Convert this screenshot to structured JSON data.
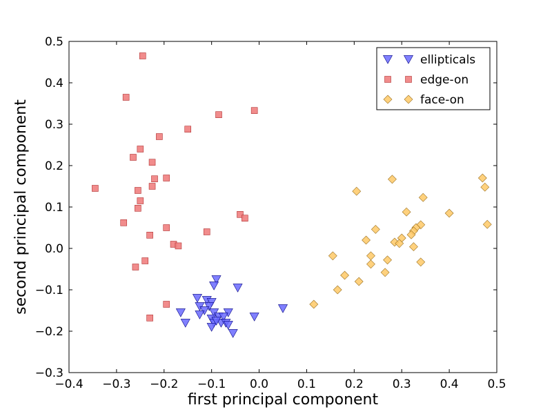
{
  "chart_data": {
    "type": "scatter",
    "title": "",
    "xlabel": "first principal component",
    "ylabel": "second principal component",
    "xlim": [
      -0.4,
      0.5
    ],
    "ylim": [
      -0.3,
      0.5
    ],
    "xticks": [
      -0.4,
      -0.3,
      -0.2,
      -0.1,
      0.0,
      0.1,
      0.2,
      0.3,
      0.4,
      0.5
    ],
    "yticks": [
      -0.3,
      -0.2,
      -0.1,
      0.0,
      0.1,
      0.2,
      0.3,
      0.4,
      0.5
    ],
    "xtick_labels": [
      "−0.4",
      "−0.3",
      "−0.2",
      "−0.1",
      "0.0",
      "0.1",
      "0.2",
      "0.3",
      "0.4",
      "0.5"
    ],
    "ytick_labels": [
      "−0.3",
      "−0.2",
      "−0.1",
      "0.0",
      "0.1",
      "0.2",
      "0.3",
      "0.4",
      "0.5"
    ],
    "grid": false,
    "legend_position": "top-right",
    "series": [
      {
        "name": "ellipticals",
        "marker": "triangle-down",
        "color": "#6a6aff",
        "edge": "#000080",
        "points": [
          [
            -0.09,
            -0.075
          ],
          [
            -0.095,
            -0.09
          ],
          [
            -0.045,
            -0.095
          ],
          [
            -0.13,
            -0.12
          ],
          [
            -0.11,
            -0.125
          ],
          [
            -0.1,
            -0.13
          ],
          [
            -0.125,
            -0.14
          ],
          [
            -0.105,
            -0.14
          ],
          [
            -0.115,
            -0.15
          ],
          [
            -0.165,
            -0.155
          ],
          [
            -0.095,
            -0.155
          ],
          [
            -0.125,
            -0.16
          ],
          [
            -0.065,
            -0.155
          ],
          [
            -0.085,
            -0.165
          ],
          [
            -0.075,
            -0.165
          ],
          [
            -0.1,
            -0.17
          ],
          [
            -0.155,
            -0.18
          ],
          [
            -0.095,
            -0.18
          ],
          [
            -0.08,
            -0.18
          ],
          [
            -0.07,
            -0.18
          ],
          [
            -0.065,
            -0.185
          ],
          [
            -0.1,
            -0.19
          ],
          [
            -0.055,
            -0.205
          ],
          [
            -0.01,
            -0.165
          ],
          [
            0.05,
            -0.145
          ],
          [
            -0.09,
            -0.175
          ]
        ]
      },
      {
        "name": "edge-on",
        "marker": "square",
        "color": "#f08080",
        "edge": "#b03030",
        "points": [
          [
            -0.245,
            0.465
          ],
          [
            -0.28,
            0.365
          ],
          [
            -0.085,
            0.323
          ],
          [
            -0.01,
            0.333
          ],
          [
            -0.15,
            0.288
          ],
          [
            -0.21,
            0.27
          ],
          [
            -0.25,
            0.24
          ],
          [
            -0.265,
            0.22
          ],
          [
            -0.225,
            0.208
          ],
          [
            -0.195,
            0.17
          ],
          [
            -0.22,
            0.168
          ],
          [
            -0.225,
            0.15
          ],
          [
            -0.345,
            0.145
          ],
          [
            -0.255,
            0.14
          ],
          [
            -0.25,
            0.115
          ],
          [
            -0.255,
            0.097
          ],
          [
            -0.04,
            0.082
          ],
          [
            -0.03,
            0.073
          ],
          [
            -0.285,
            0.062
          ],
          [
            -0.195,
            0.05
          ],
          [
            -0.11,
            0.04
          ],
          [
            -0.23,
            0.032
          ],
          [
            -0.18,
            0.01
          ],
          [
            -0.17,
            0.006
          ],
          [
            -0.24,
            -0.03
          ],
          [
            -0.26,
            -0.045
          ],
          [
            -0.195,
            -0.135
          ],
          [
            -0.23,
            -0.168
          ]
        ]
      },
      {
        "name": "face-on",
        "marker": "diamond",
        "color": "#ffc966",
        "edge": "#9a7020",
        "points": [
          [
            0.47,
            0.17
          ],
          [
            0.475,
            0.148
          ],
          [
            0.28,
            0.167
          ],
          [
            0.205,
            0.138
          ],
          [
            0.345,
            0.123
          ],
          [
            0.31,
            0.088
          ],
          [
            0.4,
            0.085
          ],
          [
            0.48,
            0.058
          ],
          [
            0.34,
            0.057
          ],
          [
            0.33,
            0.05
          ],
          [
            0.245,
            0.046
          ],
          [
            0.325,
            0.042
          ],
          [
            0.32,
            0.033
          ],
          [
            0.3,
            0.025
          ],
          [
            0.225,
            0.02
          ],
          [
            0.285,
            0.015
          ],
          [
            0.295,
            0.012
          ],
          [
            0.325,
            0.004
          ],
          [
            0.155,
            -0.018
          ],
          [
            0.235,
            -0.018
          ],
          [
            0.27,
            -0.028
          ],
          [
            0.34,
            -0.033
          ],
          [
            0.235,
            -0.038
          ],
          [
            0.265,
            -0.058
          ],
          [
            0.18,
            -0.065
          ],
          [
            0.21,
            -0.08
          ],
          [
            0.165,
            -0.1
          ],
          [
            0.115,
            -0.135
          ]
        ]
      }
    ]
  }
}
